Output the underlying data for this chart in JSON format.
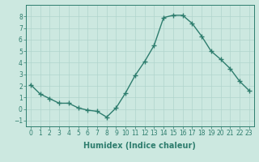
{
  "x": [
    0,
    1,
    2,
    3,
    4,
    5,
    6,
    7,
    8,
    9,
    10,
    11,
    12,
    13,
    14,
    15,
    16,
    17,
    18,
    19,
    20,
    21,
    22,
    23
  ],
  "y": [
    2.1,
    1.3,
    0.9,
    0.5,
    0.5,
    0.1,
    -0.1,
    -0.2,
    -0.7,
    0.1,
    1.4,
    2.9,
    4.1,
    5.5,
    7.9,
    8.1,
    8.1,
    7.4,
    6.3,
    5.0,
    4.3,
    3.5,
    2.4,
    1.6
  ],
  "line_color": "#2e7d6e",
  "marker": "+",
  "marker_size": 4,
  "line_width": 1.0,
  "xlabel": "Humidex (Indice chaleur)",
  "xlabel_fontsize": 7,
  "xlabel_bold": true,
  "ylim": [
    -1.5,
    9.0
  ],
  "xlim": [
    -0.5,
    23.5
  ],
  "yticks": [
    -1,
    0,
    1,
    2,
    3,
    4,
    5,
    6,
    7,
    8
  ],
  "xtick_labels": [
    "0",
    "1",
    "2",
    "3",
    "4",
    "5",
    "6",
    "7",
    "8",
    "9",
    "10",
    "11",
    "12",
    "13",
    "14",
    "15",
    "16",
    "17",
    "18",
    "19",
    "20",
    "21",
    "22",
    "23"
  ],
  "background_color": "#cce8e0",
  "grid_color": "#b0d4cc",
  "tick_fontsize": 5.5
}
